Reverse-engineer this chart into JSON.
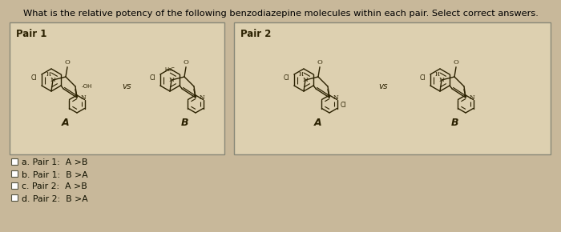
{
  "title": "What is the relative potency of the following benzodiazepine molecules within each pair. Select correct answers.",
  "bg_color": "#c8b89a",
  "box_color": "#ddd0b0",
  "box_edge_color": "#888877",
  "pair1_label": "Pair 1",
  "pair2_label": "Pair 2",
  "options": [
    "a. Pair 1:  A >B",
    "b. Pair 1:  B >A",
    "c. Pair 2:  A >B",
    "d. Pair 2:  B >A"
  ],
  "vs_text": "vs",
  "mol_color": "#2a2000",
  "label_color": "#1a1a00"
}
